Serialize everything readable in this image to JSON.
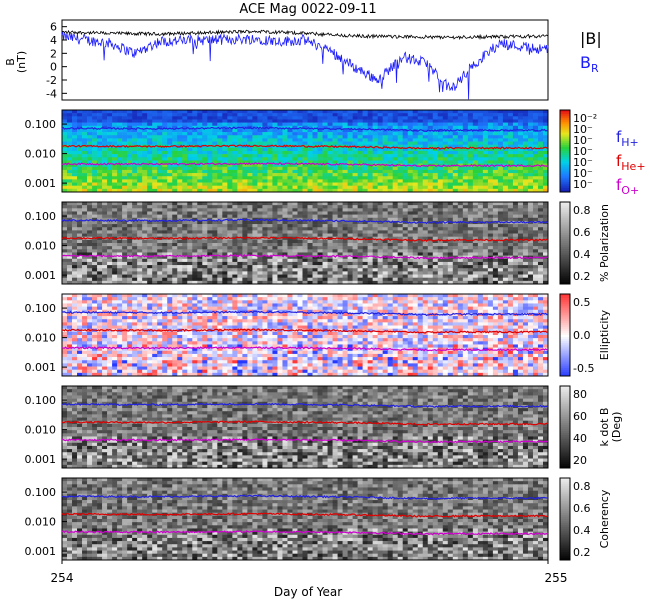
{
  "title": "ACE Mag 0022-09-11",
  "xlabel": "Day of Year",
  "x_ticks": [
    "254",
    "255"
  ],
  "colors": {
    "bmag": "#000000",
    "br": "#1a1aff",
    "h_plus": "#2222dd",
    "he_plus": "#dd0000",
    "o_plus": "#cc00cc"
  },
  "chart_data": [
    {
      "type": "line",
      "panel": "field",
      "ylabel": "B\n(nT)",
      "ylim": [
        -5,
        7
      ],
      "y_ticks": [
        -4,
        -2,
        0,
        2,
        4,
        6
      ],
      "xlim": [
        254,
        255
      ],
      "series": [
        {
          "name": "|B|",
          "points": [
            [
              254.0,
              5.2
            ],
            [
              254.1,
              5.0
            ],
            [
              254.2,
              4.9
            ],
            [
              254.3,
              5.1
            ],
            [
              254.4,
              5.3
            ],
            [
              254.5,
              5.0
            ],
            [
              254.6,
              4.6
            ],
            [
              254.7,
              4.5
            ],
            [
              254.8,
              4.4
            ],
            [
              254.9,
              4.5
            ],
            [
              255.0,
              4.6
            ]
          ]
        },
        {
          "name": "B_R",
          "points": [
            [
              254.0,
              4.5
            ],
            [
              254.1,
              3.5
            ],
            [
              254.15,
              2.0
            ],
            [
              254.2,
              3.8
            ],
            [
              254.3,
              4.0
            ],
            [
              254.4,
              4.2
            ],
            [
              254.45,
              3.8
            ],
            [
              254.5,
              4.0
            ],
            [
              254.55,
              2.5
            ],
            [
              254.6,
              0.0
            ],
            [
              254.65,
              -2.0
            ],
            [
              254.7,
              1.5
            ],
            [
              254.75,
              0.5
            ],
            [
              254.8,
              -3.5
            ],
            [
              254.85,
              0.5
            ],
            [
              254.9,
              3.5
            ],
            [
              254.95,
              3.0
            ],
            [
              255.0,
              2.5
            ]
          ]
        }
      ],
      "legend": [
        "|B|",
        "B_R"
      ]
    },
    {
      "type": "heatmap",
      "panel": "power",
      "ylim": [
        0.0005,
        0.3
      ],
      "y_scale": "log",
      "y_ticks": [
        "0.100",
        "0.010",
        "0.001"
      ],
      "colorbar_ticks": [
        "10⁻²",
        "10⁻",
        "10⁻",
        "10⁻",
        "10⁻",
        "10⁻",
        "10⁻"
      ],
      "colormap": "rainbow",
      "legend": [
        "f_H+",
        "f_He+",
        "f_O+"
      ]
    },
    {
      "type": "heatmap",
      "panel": "polarization",
      "ylim": [
        0.0005,
        0.3
      ],
      "y_scale": "log",
      "y_ticks": [
        "0.100",
        "0.010",
        "0.001"
      ],
      "colorbar_label": "% Polarization",
      "colorbar_ticks": [
        "0.8",
        "0.6",
        "0.4",
        "0.2"
      ],
      "colormap": "gray"
    },
    {
      "type": "heatmap",
      "panel": "ellipticity",
      "ylim": [
        0.0005,
        0.3
      ],
      "y_scale": "log",
      "y_ticks": [
        "0.100",
        "0.010",
        "0.001"
      ],
      "colorbar_label": "Ellipticity",
      "colorbar_ticks": [
        "0.5",
        "0.0",
        "-0.5"
      ],
      "colormap": "red-white-blue"
    },
    {
      "type": "heatmap",
      "panel": "kdotb",
      "ylim": [
        0.0005,
        0.3
      ],
      "y_scale": "log",
      "y_ticks": [
        "0.100",
        "0.010",
        "0.001"
      ],
      "colorbar_label": "k dot B\n(Deg)",
      "colorbar_ticks": [
        "80",
        "60",
        "40",
        "20"
      ],
      "colormap": "gray"
    },
    {
      "type": "heatmap",
      "panel": "coherency",
      "ylim": [
        0.0005,
        0.3
      ],
      "y_scale": "log",
      "y_ticks": [
        "0.100",
        "0.010",
        "0.001"
      ],
      "colorbar_label": "Coherency",
      "colorbar_ticks": [
        "0.8",
        "0.6",
        "0.4",
        "0.2"
      ],
      "colormap": "gray"
    },
    {
      "type": "line",
      "panel": "gyrofrequencies",
      "note_series_overlay_on_all_heatmaps": true,
      "series": [
        {
          "name": "f_H+",
          "points": [
            [
              254.0,
              0.072
            ],
            [
              254.2,
              0.07
            ],
            [
              254.4,
              0.074
            ],
            [
              254.6,
              0.068
            ],
            [
              254.75,
              0.06
            ],
            [
              254.8,
              0.062
            ],
            [
              255.0,
              0.062
            ]
          ]
        },
        {
          "name": "f_He+",
          "points": [
            [
              254.0,
              0.018
            ],
            [
              254.2,
              0.0175
            ],
            [
              254.4,
              0.0185
            ],
            [
              254.6,
              0.017
            ],
            [
              254.75,
              0.015
            ],
            [
              254.8,
              0.0155
            ],
            [
              255.0,
              0.0155
            ]
          ]
        },
        {
          "name": "f_O+",
          "points": [
            [
              254.0,
              0.0045
            ],
            [
              254.2,
              0.0044
            ],
            [
              254.4,
              0.0046
            ],
            [
              254.6,
              0.0043
            ],
            [
              254.75,
              0.0038
            ],
            [
              254.8,
              0.0039
            ],
            [
              255.0,
              0.0039
            ]
          ]
        }
      ]
    }
  ]
}
